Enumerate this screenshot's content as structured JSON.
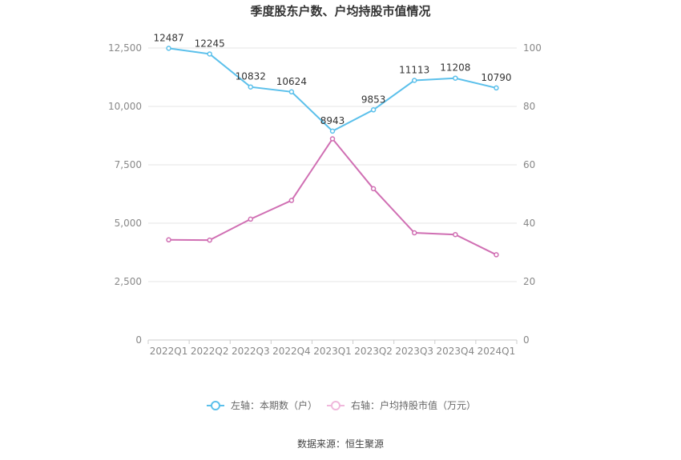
{
  "chart_data": {
    "type": "line",
    "title": "季度股东户数、户均持股市值情况",
    "categories": [
      "2022Q1",
      "2022Q2",
      "2022Q3",
      "2022Q4",
      "2023Q1",
      "2023Q2",
      "2023Q3",
      "2023Q4",
      "2024Q1"
    ],
    "left_axis": {
      "ylim": [
        0,
        12500
      ],
      "ticks": [
        "0",
        "2,500",
        "5,000",
        "7,500",
        "10,000",
        "12,500"
      ],
      "tick_values": [
        0,
        2500,
        5000,
        7500,
        10000,
        12500
      ]
    },
    "right_axis": {
      "ylim": [
        0,
        100
      ],
      "ticks": [
        "0",
        "20",
        "40",
        "60",
        "80",
        "100"
      ],
      "tick_values": [
        0,
        20,
        40,
        60,
        80,
        100
      ]
    },
    "series": [
      {
        "name": "左轴：本期数（户）",
        "axis": "left",
        "color": "#5bc0eb",
        "values": [
          12487,
          12245,
          10832,
          10624,
          8943,
          9853,
          11113,
          11208,
          10790
        ],
        "labels": [
          "12487",
          "12245",
          "10832",
          "10624",
          "8943",
          "9853",
          "11113",
          "11208",
          "10790"
        ]
      },
      {
        "name": "右轴：户均持股市值（万元）",
        "axis": "right",
        "color": "#d06fb3",
        "values": [
          34.3,
          34.2,
          41.4,
          47.8,
          68.9,
          51.8,
          36.7,
          36.1,
          29.2
        ]
      }
    ],
    "grid": true,
    "legend_position": "bottom-center"
  },
  "source": "数据来源：恒生聚源"
}
